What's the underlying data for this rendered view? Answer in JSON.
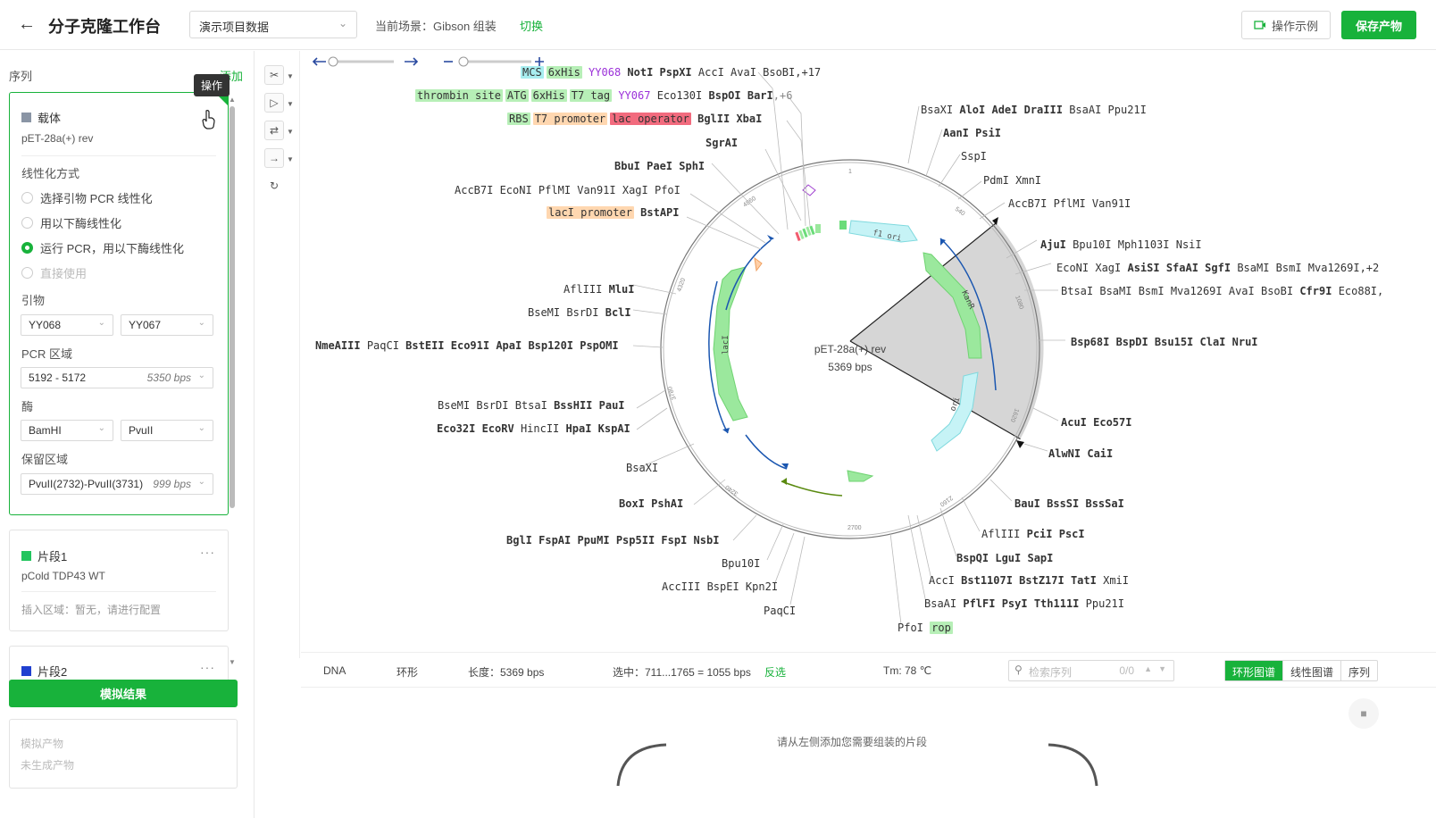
{
  "header": {
    "back_icon": "arrow-left-icon",
    "title": "分子克隆工作台",
    "project": "演示项目数据",
    "scene": "当前场景：Gibson 组装",
    "switch": "切换",
    "example_btn": "操作示例",
    "save_btn": "保存产物"
  },
  "left": {
    "seq_label": "序列",
    "add_label": "添加",
    "tooltip": "操作",
    "vector": {
      "type": "载体",
      "name": "pET-28a(+) rev",
      "color": "#8a95a5",
      "linear_title": "线性化方式",
      "options": [
        "选择引物 PCR 线性化",
        "用以下酶线性化",
        "运行 PCR，用以下酶线性化",
        "直接使用"
      ],
      "primer_title": "引物",
      "primer1": "YY068",
      "primer2": "YY067",
      "pcr_title": "PCR 区域",
      "pcr_range": "5192 - 5172",
      "pcr_len": "5350 bps",
      "enzyme_title": "酶",
      "enzyme1": "BamHI",
      "enzyme2": "PvuII",
      "keep_title": "保留区域",
      "keep_range": "PvuII(2732)-PvuII(3731)",
      "keep_len": "999 bps"
    },
    "fragment1": {
      "type": "片段1",
      "name": "pCold TDP43 WT",
      "color": "#22c55e",
      "insert": "插入区域：暂无，请进行配置"
    },
    "fragment2": {
      "type": "片段2",
      "color": "#2040d0"
    },
    "simulate_btn": "模拟结果",
    "result_title": "模拟产物",
    "result_empty": "未生成产物"
  },
  "map": {
    "center_name": "pET-28a(+) rev",
    "center_len": "5369 bps",
    "ticks": [
      "1",
      "540",
      "1080",
      "1620",
      "2160",
      "2700",
      "3240",
      "3780",
      "4320",
      "4860"
    ],
    "features": [
      "f1 ori",
      "KanR",
      "ori",
      "lacI"
    ],
    "top_rows": [
      {
        "cells": [
          [
            "MCS",
            "f-cyan"
          ],
          [
            "6xHis",
            "f-green"
          ]
        ],
        "purple": "YY068",
        "bold": "NotI PspXI",
        "plain": "AccI AvaI BsoBI,+17"
      },
      {
        "cells": [
          [
            "thrombin site",
            "f-green"
          ],
          [
            "ATG",
            "f-green"
          ],
          [
            "6xHis",
            "f-green"
          ],
          [
            "T7 tag",
            "f-green"
          ]
        ],
        "purple": "YY067",
        "bold": "BspOI BarI",
        "plain": "Eco130I",
        "tail": ",+6"
      },
      {
        "cells": [
          [
            "RBS",
            "f-green"
          ],
          [
            "T7 promoter",
            "f-orange"
          ],
          [
            "lac operator",
            "f-red"
          ]
        ],
        "bold": "BglII XbaI"
      }
    ],
    "sgrai": "SgrAI",
    "bbui": "BbuI PaeI SphI",
    "accb7i_left": "AccB7I EcoNI PflMI Van91I XagI PfoI",
    "laci_prom": "lacI promoter",
    "bstapi": "BstAPI",
    "afliii_left": "AflIII",
    "mlui": "MluI",
    "bsemi1": "BseMI BsrDI",
    "bcli": "BclI",
    "nmeaiii": "NmeAIII",
    "paqci_mid": "PaqCI",
    "bsteii": "BstEII Eco91I ApaI Bsp120I PspOMI",
    "bsemi2": "BseMI BsrDI BtsaI",
    "bsshii": "BssHII PauI",
    "eco32i": "Eco32I EcoRV",
    "hincii": "HincII",
    "hpai": "HpaI KspAI",
    "bsaxi_left": "BsaXI",
    "boxi": "BoxI PshAI",
    "bgli": "BglI FspAI PpuMI Psp5II FspI NsbI",
    "bpu10i": "Bpu10I",
    "acciii": "AccIII BspEI Kpn2I",
    "paqci": "PaqCI",
    "right": {
      "r1_plain": "BsaXI",
      "r1_bold": "AloI AdeI DraIII",
      "r1_tail": "BsaAI Ppu21I",
      "r2": "AanI PsiI",
      "r3": "SspI",
      "r4": "PdmI XmnI",
      "r5": "AccB7I PflMI Van91I",
      "r6_bold": "AjuI",
      "r6_plain": "Bpu10I Mph1103I NsiI",
      "r7_plain": "EcoNI XagI",
      "r7_bold": "AsiSI SfaAI SgfI",
      "r7_tail": "BsaMI BsmI Mva1269I,+2",
      "r8_plain": "BtsaI BsaMI BsmI Mva1269I AvaI BsoBI",
      "r8_bold": "Cfr9I",
      "r8_tail": "Eco88I,",
      "r9": "Bsp68I BspDI Bsu15I ClaI NruI",
      "r10": "AcuI Eco57I",
      "r11": "AlwNI CaiI",
      "r12": "BauI BssSI BssSaI",
      "r13_plain": "AflIII",
      "r13_bold": "PciI PscI",
      "r14": "BspQI LguI SapI",
      "r15_plain": "AccI",
      "r15_bold": "Bst1107I BstZ17I TatI",
      "r15_tail": "XmiI",
      "r16_plain": "BsaAI",
      "r16_bold": "PflFI PsyI Tth111I",
      "r16_tail": "Ppu21I",
      "r17_plain": "PfoI",
      "r17_feat": "rop"
    }
  },
  "status": {
    "type": "DNA",
    "topology": "环形",
    "length": "长度：5369 bps",
    "selection": "选中：711...1765 = 1055 bps",
    "invert": "反选",
    "tm": "Tm: 78 ℃",
    "search_placeholder": "检索序列",
    "search_count": "0/0",
    "tabs": [
      "环形图谱",
      "线性图谱",
      "序列"
    ]
  },
  "bottom": {
    "hint": "请从左侧添加您需要组装的片段"
  }
}
